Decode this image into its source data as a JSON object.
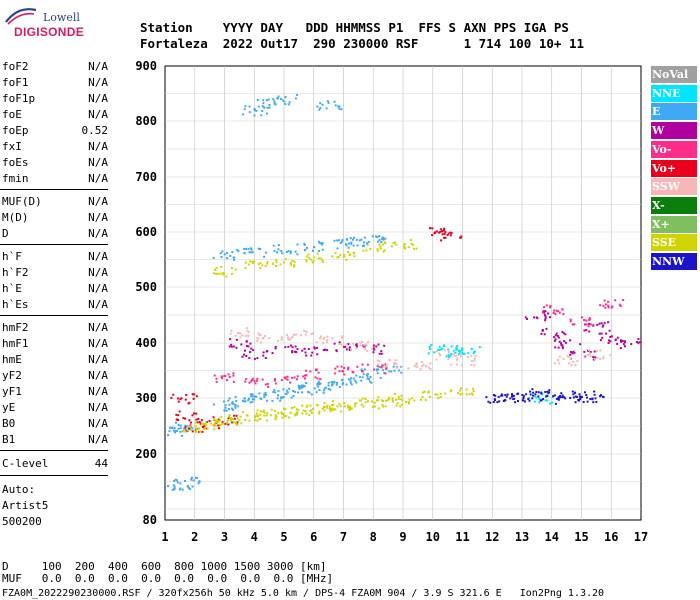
{
  "logo": {
    "top": "Lowell",
    "main": "DIGISONDE"
  },
  "header": {
    "line1": "Station    YYYY DAY   DDD HHMMSS P1  FFS S AXN PPS IGA PS",
    "line2": "Fortaleza  2022 Out17  290 230000 RSF      1 714 100 10+ 11"
  },
  "params_group1": [
    {
      "name": "foF2",
      "value": "N/A"
    },
    {
      "name": "foF1",
      "value": "N/A"
    },
    {
      "name": "foF1p",
      "value": "N/A"
    },
    {
      "name": "foE",
      "value": "N/A"
    },
    {
      "name": "foEp",
      "value": "0.52"
    },
    {
      "name": "fxI",
      "value": "N/A"
    },
    {
      "name": "foEs",
      "value": "N/A"
    },
    {
      "name": "fmin",
      "value": "N/A"
    }
  ],
  "params_group2": [
    {
      "name": "MUF(D)",
      "value": "N/A"
    },
    {
      "name": "M(D)",
      "value": "N/A"
    },
    {
      "name": "D",
      "value": "N/A"
    }
  ],
  "params_group3": [
    {
      "name": "h`F",
      "value": "N/A"
    },
    {
      "name": "h`F2",
      "value": "N/A"
    },
    {
      "name": "h`E",
      "value": "N/A"
    },
    {
      "name": "h`Es",
      "value": "N/A"
    }
  ],
  "params_group4": [
    {
      "name": "hmF2",
      "value": "N/A"
    },
    {
      "name": "hmF1",
      "value": "N/A"
    },
    {
      "name": "hmE",
      "value": "N/A"
    },
    {
      "name": "yF2",
      "value": "N/A"
    },
    {
      "name": "yF1",
      "value": "N/A"
    },
    {
      "name": "yE",
      "value": "N/A"
    },
    {
      "name": "B0",
      "value": "N/A"
    },
    {
      "name": "B1",
      "value": "N/A"
    }
  ],
  "clevel": {
    "name": "C-level",
    "value": "44"
  },
  "auto": {
    "label": "Auto:",
    "name": "Artist5",
    "version": "500200"
  },
  "legend": [
    {
      "label": "NoVal",
      "bg": "#a0a0a0",
      "fg": "#ffffff"
    },
    {
      "label": "NNE",
      "bg": "#00e5ff",
      "fg": "#ffffff"
    },
    {
      "label": "E",
      "bg": "#3fa9f5",
      "fg": "#ffffff"
    },
    {
      "label": "W",
      "bg": "#b0009e",
      "fg": "#ffffff"
    },
    {
      "label": "Vo-",
      "bg": "#ff2d8a",
      "fg": "#ffffff"
    },
    {
      "label": "Vo+",
      "bg": "#e8001c",
      "fg": "#ffffff"
    },
    {
      "label": "SSW",
      "bg": "#f7b7b7",
      "fg": "#ffffff"
    },
    {
      "label": "X-",
      "bg": "#0a7d0a",
      "fg": "#ffffff"
    },
    {
      "label": "X+",
      "bg": "#7fbf5f",
      "fg": "#ffffff"
    },
    {
      "label": "SSE",
      "bg": "#cfd400",
      "fg": "#ffffff"
    },
    {
      "label": "NNW",
      "bg": "#1c14c8",
      "fg": "#ffffff"
    }
  ],
  "bottom": {
    "line1": "D     100  200  400  600  800 1000 1500 3000 [km]",
    "line2": "MUF   0.0  0.0  0.0  0.0  0.0  0.0  0.0  0.0 [MHz]",
    "line3": "FZA0M_2022290230000.RSF / 320fx256h 50 kHz 5.0 km / DPS-4 FZA0M 904 / 3.9 S 321.6 E   Ion2Png 1.3.20"
  },
  "chart_data": {
    "type": "scatter",
    "title": "",
    "xlabel": "",
    "ylabel": "",
    "xlim": [
      1,
      17
    ],
    "ylim": [
      80,
      900
    ],
    "x_ticks": [
      "1",
      "2",
      "3",
      "4",
      "5",
      "6",
      "7",
      "8",
      "9",
      "10",
      "11",
      "12",
      "13",
      "14",
      "15",
      "16",
      "17"
    ],
    "y_ticks": [
      "80",
      "200",
      "300",
      "400",
      "500",
      "600",
      "700",
      "800",
      "900"
    ],
    "grid": true,
    "legend_position": "right",
    "series": [
      {
        "name": "NoVal",
        "color": "#a0a0a0",
        "points": []
      },
      {
        "name": "NNE",
        "color": "#00e5ff",
        "points": [
          [
            10.2,
            390
          ],
          [
            10.8,
            385
          ],
          [
            13.6,
            300
          ],
          [
            11.2,
            390
          ]
        ]
      },
      {
        "name": "E",
        "color": "#3fa9f5",
        "points": [
          [
            1.5,
            240
          ],
          [
            1.7,
            250
          ],
          [
            3.0,
            288
          ],
          [
            3.5,
            295
          ],
          [
            4.0,
            300
          ],
          [
            4.5,
            305
          ],
          [
            5.0,
            310
          ],
          [
            5.5,
            315
          ],
          [
            6.0,
            320
          ],
          [
            6.5,
            325
          ],
          [
            7.0,
            330
          ],
          [
            7.5,
            335
          ],
          [
            8.0,
            345
          ],
          [
            8.5,
            355
          ],
          [
            3.0,
            560
          ],
          [
            4.0,
            565
          ],
          [
            5.0,
            570
          ],
          [
            6.0,
            575
          ],
          [
            7.0,
            580
          ],
          [
            7.5,
            585
          ],
          [
            8.0,
            588
          ],
          [
            4.0,
            820
          ],
          [
            4.5,
            835
          ],
          [
            5.0,
            840
          ],
          [
            6.5,
            830
          ],
          [
            1.5,
            145
          ],
          [
            1.7,
            150
          ]
        ]
      },
      {
        "name": "W",
        "color": "#b0009e",
        "points": [
          [
            3.5,
            400
          ],
          [
            4.0,
            380
          ],
          [
            5.0,
            390
          ],
          [
            6.0,
            385
          ],
          [
            7.0,
            395
          ],
          [
            8.0,
            390
          ],
          [
            13.5,
            450
          ],
          [
            14.0,
            420
          ],
          [
            14.5,
            400
          ],
          [
            15.0,
            380
          ],
          [
            15.5,
            430
          ],
          [
            16.0,
            410
          ],
          [
            16.5,
            400
          ]
        ]
      },
      {
        "name": "Vo-",
        "color": "#ff2d8a",
        "points": [
          [
            3.0,
            340
          ],
          [
            4.0,
            330
          ],
          [
            5.0,
            335
          ],
          [
            6.0,
            345
          ],
          [
            7.0,
            350
          ],
          [
            8.0,
            355
          ],
          [
            14.0,
            460
          ],
          [
            15.0,
            440
          ],
          [
            16.0,
            470
          ]
        ]
      },
      {
        "name": "Vo+",
        "color": "#e8001c",
        "points": [
          [
            1.6,
            300
          ],
          [
            1.7,
            270
          ],
          [
            2.0,
            250
          ],
          [
            2.5,
            255
          ],
          [
            3.0,
            262
          ],
          [
            10.2,
            600
          ],
          [
            10.6,
            595
          ]
        ]
      },
      {
        "name": "SSW",
        "color": "#f7b7b7",
        "points": [
          [
            3.5,
            420
          ],
          [
            4.5,
            410
          ],
          [
            5.5,
            415
          ],
          [
            6.5,
            405
          ],
          [
            7.5,
            395
          ],
          [
            8.5,
            365
          ],
          [
            9.5,
            360
          ],
          [
            10.5,
            380
          ],
          [
            11.0,
            370
          ],
          [
            14.5,
            370
          ],
          [
            15.5,
            380
          ]
        ]
      },
      {
        "name": "X-",
        "color": "#0a7d0a",
        "points": []
      },
      {
        "name": "X+",
        "color": "#7fbf5f",
        "points": []
      },
      {
        "name": "SSE",
        "color": "#cfd400",
        "points": [
          [
            2.0,
            250
          ],
          [
            2.5,
            255
          ],
          [
            3.0,
            260
          ],
          [
            3.5,
            265
          ],
          [
            4.0,
            270
          ],
          [
            4.5,
            272
          ],
          [
            5.0,
            275
          ],
          [
            5.5,
            280
          ],
          [
            6.0,
            282
          ],
          [
            6.5,
            285
          ],
          [
            7.0,
            288
          ],
          [
            7.5,
            290
          ],
          [
            8.0,
            292
          ],
          [
            8.5,
            295
          ],
          [
            9.0,
            300
          ],
          [
            10.0,
            305
          ],
          [
            11.0,
            315
          ],
          [
            3.0,
            530
          ],
          [
            4.0,
            540
          ],
          [
            5.0,
            545
          ],
          [
            6.0,
            555
          ],
          [
            7.0,
            560
          ],
          [
            8.0,
            575
          ],
          [
            9.0,
            580
          ]
        ]
      },
      {
        "name": "NNW",
        "color": "#1c14c8",
        "points": [
          [
            12.2,
            300
          ],
          [
            12.6,
            305
          ],
          [
            13.0,
            300
          ],
          [
            13.5,
            310
          ],
          [
            14.0,
            305
          ],
          [
            14.5,
            300
          ],
          [
            15.0,
            305
          ],
          [
            15.3,
            300
          ]
        ]
      }
    ]
  }
}
